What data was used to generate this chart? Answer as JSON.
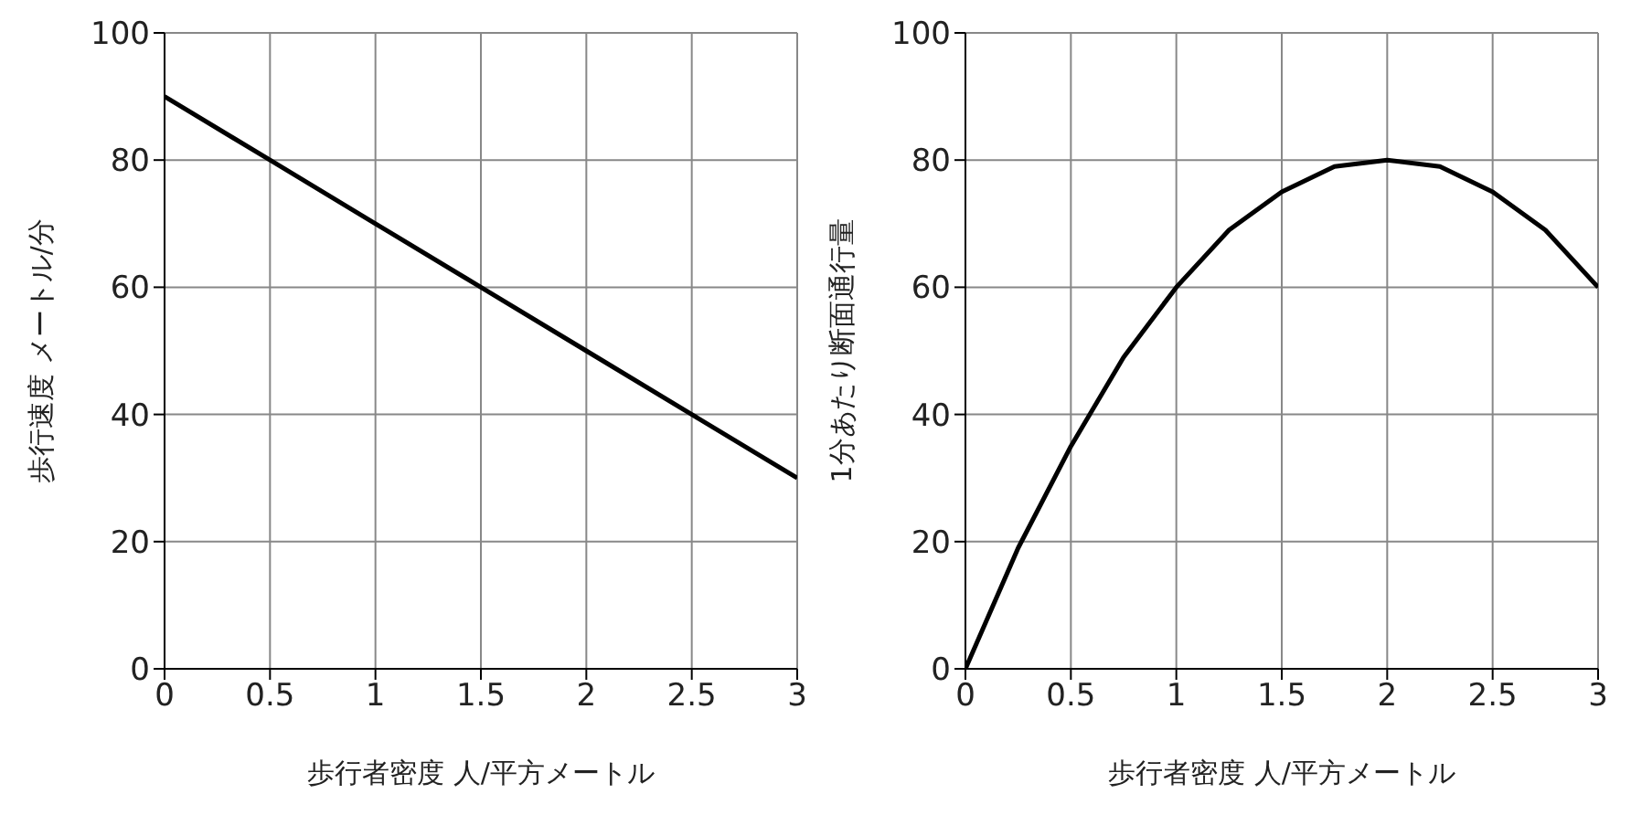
{
  "chart_data": [
    {
      "type": "line",
      "xlabel": "歩行者密度 人/平方メートル",
      "ylabel": "歩行速度 メートル/分",
      "x": [
        0,
        0.5,
        1,
        1.5,
        2,
        2.5,
        3
      ],
      "series": [
        {
          "color": "#000000",
          "values": [
            90,
            80,
            70,
            60,
            50,
            40,
            30
          ]
        }
      ],
      "xlim": [
        0,
        3
      ],
      "ylim": [
        0,
        100
      ],
      "xticks": [
        0,
        0.5,
        1,
        1.5,
        2,
        2.5,
        3
      ],
      "yticks": [
        0,
        20,
        40,
        60,
        80,
        100
      ],
      "grid": true,
      "marker": "none",
      "line_style": "solid"
    },
    {
      "type": "line",
      "xlabel": "歩行者密度 人/平方メートル",
      "ylabel": "1分あたり断面通行量",
      "x": [
        0,
        0.25,
        0.5,
        0.75,
        1,
        1.25,
        1.5,
        1.75,
        2,
        2.25,
        2.5,
        2.75,
        3
      ],
      "series": [
        {
          "color": "#000000",
          "values": [
            0,
            19,
            35,
            49,
            60,
            69,
            75,
            79,
            80,
            79,
            75,
            69,
            60
          ]
        }
      ],
      "xlim": [
        0,
        3
      ],
      "ylim": [
        0,
        100
      ],
      "xticks": [
        0,
        0.5,
        1,
        1.5,
        2,
        2.5,
        3
      ],
      "yticks": [
        0,
        20,
        40,
        60,
        80,
        100
      ],
      "grid": true,
      "marker": "none",
      "line_style": "solid"
    }
  ]
}
